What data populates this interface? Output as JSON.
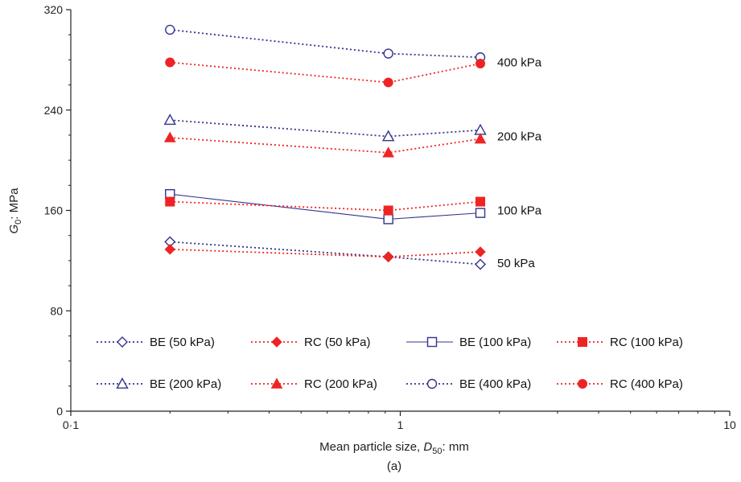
{
  "chart_data": {
    "type": "line",
    "title": "",
    "xlabel": {
      "prefix": "Mean particle size, ",
      "var": "D",
      "sub": "50",
      "suffix": ": mm"
    },
    "ylabel": {
      "var": "G",
      "sub": "0",
      "suffix": ": MPa"
    },
    "x_scale": "log",
    "xlim": [
      0.1,
      10
    ],
    "ylim": [
      0,
      320
    ],
    "x_ticks": [
      {
        "value": 0.1,
        "label": "0·1"
      },
      {
        "value": 1,
        "label": "1"
      },
      {
        "value": 10,
        "label": "10"
      }
    ],
    "y_ticks": [
      {
        "value": 0,
        "label": "0"
      },
      {
        "value": 80,
        "label": "80"
      },
      {
        "value": 160,
        "label": "160"
      },
      {
        "value": 240,
        "label": "240"
      },
      {
        "value": 320,
        "label": "320"
      }
    ],
    "x": [
      0.2,
      0.92,
      1.75
    ],
    "series": [
      {
        "name": "BE (50 kPa)",
        "values": [
          135,
          123,
          117
        ],
        "color": "#33338f",
        "marker": "diamond-open",
        "line": "dotted"
      },
      {
        "name": "RC (50 kPa)",
        "values": [
          129,
          123,
          127
        ],
        "color": "#ee2424",
        "marker": "diamond-filled",
        "line": "dotted"
      },
      {
        "name": "BE (100 kPa)",
        "values": [
          173,
          153,
          158
        ],
        "color": "#33338f",
        "marker": "square-open",
        "line": "solid"
      },
      {
        "name": "RC (100 kPa)",
        "values": [
          167,
          160,
          167
        ],
        "color": "#ee2424",
        "marker": "square-filled",
        "line": "dotted"
      },
      {
        "name": "BE (200 kPa)",
        "values": [
          232,
          219,
          224
        ],
        "color": "#33338f",
        "marker": "triangle-open",
        "line": "dotted"
      },
      {
        "name": "RC (200 kPa)",
        "values": [
          218,
          206,
          217
        ],
        "color": "#ee2424",
        "marker": "triangle-filled",
        "line": "dotted"
      },
      {
        "name": "BE (400 kPa)",
        "values": [
          304,
          285,
          282
        ],
        "color": "#33338f",
        "marker": "circle-open",
        "line": "dotted"
      },
      {
        "name": "RC (400 kPa)",
        "values": [
          278,
          262,
          277
        ],
        "color": "#ee2424",
        "marker": "circle-filled",
        "line": "dotted"
      }
    ],
    "annotations": [
      {
        "text": "400 kPa",
        "y": 278
      },
      {
        "text": "200 kPa",
        "y": 219
      },
      {
        "text": "100 kPa",
        "y": 160
      },
      {
        "text": "50 kPa",
        "y": 118
      }
    ],
    "legend": {
      "placement": "bottom-inside",
      "rows": 2
    },
    "caption": "(a)",
    "grid": false
  }
}
